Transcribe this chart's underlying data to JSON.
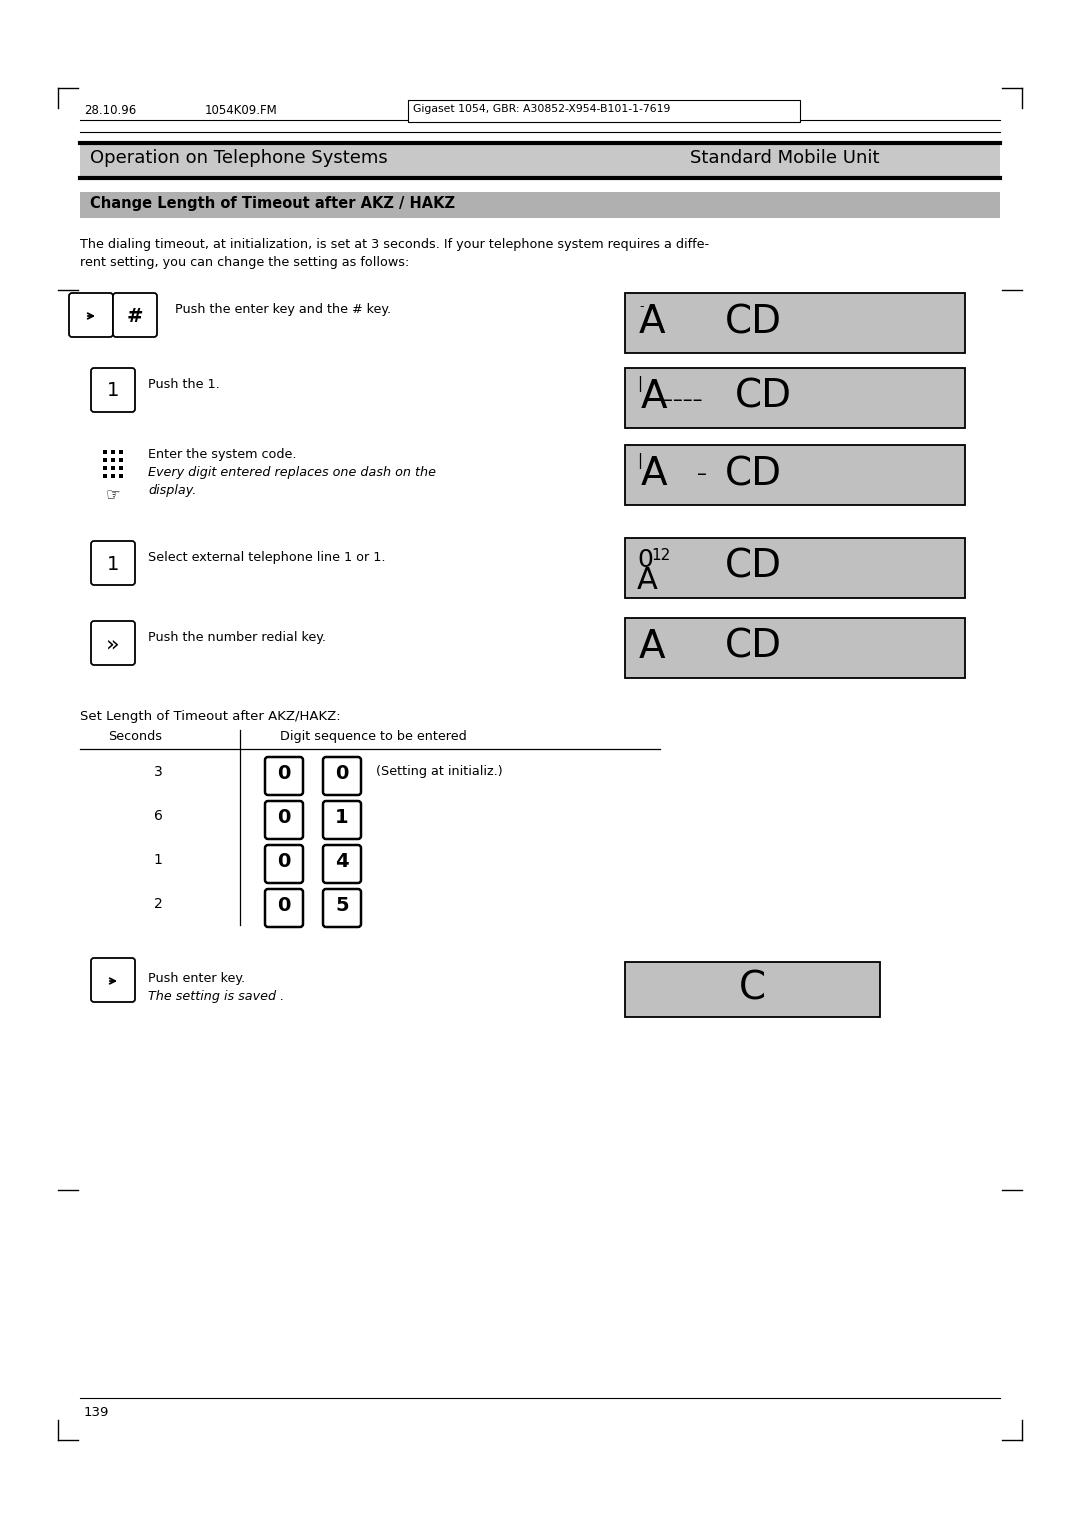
{
  "header_left": "28.10.96",
  "header_center": "1054K09.FM",
  "header_right": "Gigaset 1054, GBR: A30852-X954-B101-1-7619",
  "section_title": "Operation on Telephone Systems",
  "section_right": "Standard Mobile Unit",
  "subsection": "Change Length of Timeout after AKZ / HAKZ",
  "intro_line1": "The dialing timeout, at initialization, is set at 3 seconds. If your telephone system requires a diffe-",
  "intro_line2": "rent setting, you can change the setting as follows:",
  "step1_text": "Push the enter key and the # key.",
  "step2_text": "Push the 1.",
  "step3_text1": "Enter the system code.",
  "step3_text2": "Every digit entered replaces one dash on the",
  "step3_text3": "display.",
  "step4_text": "Select external telephone line 1 or 1.",
  "step5_text": "Push the number redial key.",
  "table_label": "Set Length of Timeout after AKZ/HAKZ:",
  "table_header_sec": "Seconds",
  "table_header_dig": "Digit sequence to be entered",
  "table_rows": [
    {
      "sec": "3",
      "d1": "0",
      "d2": "0",
      "note": "(Setting at initializ.)"
    },
    {
      "sec": "6",
      "d1": "0",
      "d2": "1",
      "note": ""
    },
    {
      "sec": "1",
      "d1": "0",
      "d2": "4",
      "note": ""
    },
    {
      "sec": "2",
      "d1": "0",
      "d2": "5",
      "note": ""
    }
  ],
  "last_step_text1": "Push enter key.",
  "last_step_text2": "The setting is saved .",
  "page_number": "139",
  "bg_color": "#ffffff",
  "display_bg": "#c0c0c0",
  "section_bg": "#c8c8c8",
  "subsec_bg": "#b0b0b0"
}
